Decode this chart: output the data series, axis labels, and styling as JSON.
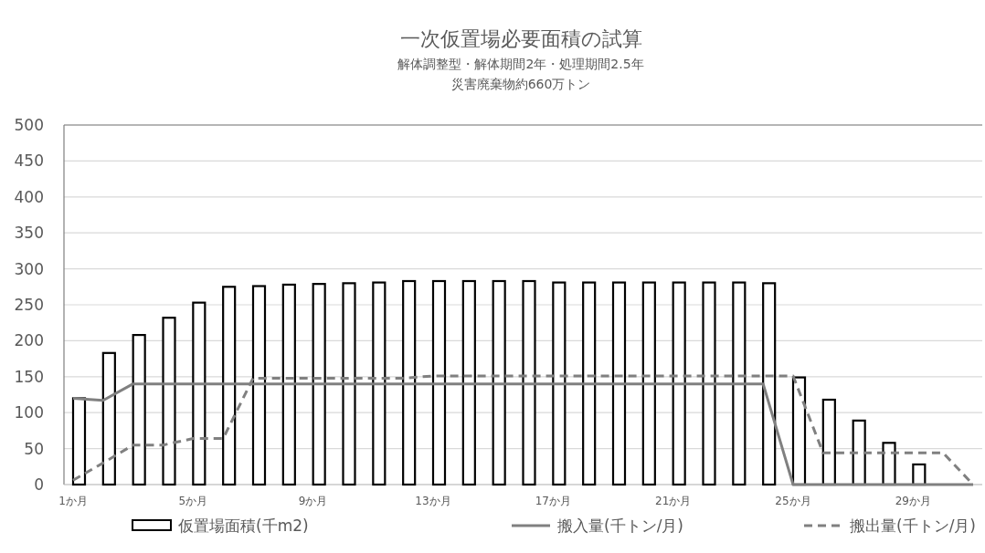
{
  "chart_data": {
    "type": "bar",
    "title": "一次仮置場必要面積の試算",
    "subtitle": "解体調整型・解体期間2年・処理期間2.5年",
    "annotations": [
      "災害廃棄物約660万トン"
    ],
    "categories": [
      "1か月",
      null,
      null,
      null,
      "5か月",
      null,
      null,
      null,
      "9か月",
      null,
      null,
      null,
      "13か月",
      null,
      null,
      null,
      "17か月",
      null,
      null,
      null,
      "21か月",
      null,
      null,
      null,
      "25か月",
      null,
      null,
      null,
      "29か月",
      null,
      null
    ],
    "series": [
      {
        "name": "仮置場面積(千m2)",
        "color": "#ffffff",
        "values": [
          120,
          183,
          208,
          232,
          253,
          275,
          276,
          278,
          279,
          280,
          281,
          283,
          283,
          283,
          283,
          283,
          281,
          281,
          281,
          281,
          281,
          281,
          281,
          280,
          149,
          118,
          89,
          58,
          28,
          null,
          null
        ]
      },
      {
        "name": "搬入量(千トン/月)",
        "type": "line",
        "color": "#808080",
        "line_style": "solid",
        "values": [
          120,
          117,
          140,
          140,
          140,
          140,
          140,
          140,
          140,
          140,
          140,
          140,
          140,
          140,
          140,
          140,
          140,
          140,
          140,
          140,
          140,
          140,
          140,
          140,
          0,
          0,
          0,
          0,
          0,
          0,
          0
        ]
      },
      {
        "name": "搬出量(千トン/月)",
        "type": "line",
        "color": "#808080",
        "line_style": "dashed",
        "values": [
          6,
          30,
          55,
          55,
          64,
          64,
          148,
          148,
          148,
          148,
          148,
          148,
          151,
          151,
          151,
          151,
          151,
          151,
          151,
          151,
          151,
          151,
          151,
          151,
          151,
          44,
          44,
          44,
          44,
          44,
          0
        ]
      }
    ],
    "ylim": [
      0,
      500
    ],
    "yticks": [
      0,
      50,
      100,
      150,
      200,
      250,
      300,
      350,
      400,
      450,
      500
    ],
    "grid": "y",
    "legend": "bottom",
    "marker": "none"
  }
}
